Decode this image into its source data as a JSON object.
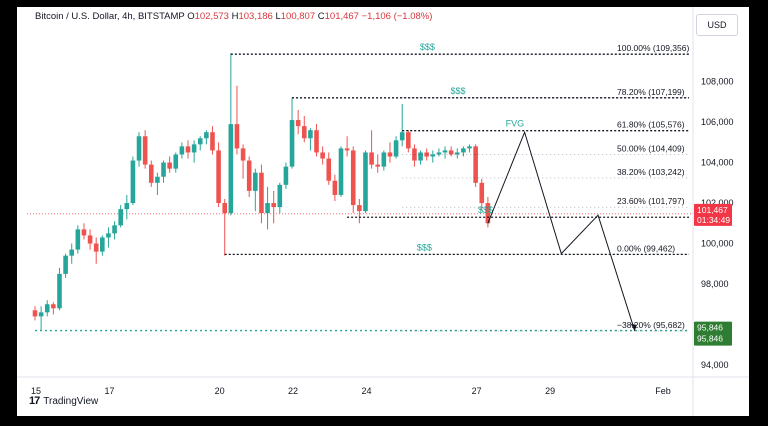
{
  "header": {
    "symbol": "Bitcoin / U.S. Dollar, 4h, BITSTAMP",
    "open_label": "O",
    "open": "102,573",
    "high_label": "H",
    "high": "103,186",
    "low_label": "L",
    "low": "100,807",
    "close_label": "C",
    "close": "101,467",
    "change": "−1,106 (−1.08%)"
  },
  "currency_button": "USD",
  "branding": "TradingView",
  "icons": [
    "tradingview-logo-icon"
  ],
  "colors": {
    "up": "#26a69a",
    "down": "#ef5350",
    "fib": "#131722",
    "annot_green": "#26a69a",
    "price_tag": "#f23645",
    "target_tag": "#2e7d32"
  },
  "chart_data": {
    "type": "candlestick",
    "timeframe": "4h",
    "y_range": [
      93800,
      110600
    ],
    "y_ticks": [
      {
        "v": 108000,
        "label": "108,000"
      },
      {
        "v": 106000,
        "label": "106,000"
      },
      {
        "v": 104000,
        "label": "104,000"
      },
      {
        "v": 102000,
        "label": "102,000"
      },
      {
        "v": 100000,
        "label": "100,000"
      },
      {
        "v": 98000,
        "label": "98,000"
      },
      {
        "v": 94000,
        "label": "94,000"
      }
    ],
    "x_ticks": [
      {
        "t": 0,
        "label": "15"
      },
      {
        "t": 12,
        "label": "17"
      },
      {
        "t": 30,
        "label": "20"
      },
      {
        "t": 42,
        "label": "22"
      },
      {
        "t": 54,
        "label": "24"
      },
      {
        "t": 72,
        "label": "27"
      },
      {
        "t": 84,
        "label": "29"
      },
      {
        "t": 102,
        "label": "Feb"
      }
    ],
    "candles": [
      [
        96700,
        96900,
        96200,
        96400
      ],
      [
        96400,
        96900,
        95700,
        96600
      ],
      [
        96600,
        97200,
        96400,
        97000
      ],
      [
        97000,
        97100,
        96500,
        96800
      ],
      [
        96800,
        98800,
        96700,
        98500
      ],
      [
        98500,
        99500,
        98300,
        99400
      ],
      [
        99400,
        100000,
        99000,
        99700
      ],
      [
        99700,
        100900,
        99500,
        100700
      ],
      [
        100700,
        101000,
        100200,
        100400
      ],
      [
        100400,
        100700,
        99700,
        100000
      ],
      [
        100000,
        100300,
        99000,
        99600
      ],
      [
        99600,
        100400,
        99400,
        100300
      ],
      [
        100300,
        100800,
        99800,
        100500
      ],
      [
        100500,
        101100,
        100200,
        100900
      ],
      [
        100900,
        101900,
        100800,
        101700
      ],
      [
        101700,
        102400,
        101200,
        102000
      ],
      [
        102000,
        104300,
        101900,
        104100
      ],
      [
        104100,
        105500,
        103800,
        105300
      ],
      [
        105300,
        105600,
        103700,
        103900
      ],
      [
        103900,
        104100,
        102800,
        103000
      ],
      [
        103000,
        103500,
        102400,
        103300
      ],
      [
        103300,
        104100,
        103000,
        104000
      ],
      [
        104000,
        104300,
        103500,
        103700
      ],
      [
        103700,
        104500,
        103500,
        104400
      ],
      [
        104400,
        105000,
        104200,
        104800
      ],
      [
        104800,
        105100,
        104200,
        104500
      ],
      [
        104500,
        105100,
        104000,
        104900
      ],
      [
        104900,
        105300,
        104600,
        105200
      ],
      [
        105200,
        105600,
        104900,
        105500
      ],
      [
        105500,
        105800,
        104400,
        104600
      ],
      [
        104600,
        105000,
        101800,
        102000
      ],
      [
        102000,
        102200,
        99400,
        101500
      ],
      [
        101500,
        109400,
        101400,
        105900
      ],
      [
        105900,
        107800,
        104400,
        104700
      ],
      [
        104700,
        104900,
        103200,
        104100
      ],
      [
        104100,
        104300,
        102300,
        102600
      ],
      [
        102600,
        103700,
        101600,
        103500
      ],
      [
        103500,
        103900,
        101000,
        101500
      ],
      [
        101500,
        102800,
        100700,
        102000
      ],
      [
        102000,
        102600,
        101000,
        101800
      ],
      [
        101800,
        103000,
        101500,
        102900
      ],
      [
        102900,
        104000,
        102700,
        103800
      ],
      [
        103800,
        107200,
        103700,
        106100
      ],
      [
        106100,
        106600,
        105400,
        105800
      ],
      [
        105800,
        106300,
        105000,
        105200
      ],
      [
        105200,
        105700,
        104600,
        105600
      ],
      [
        105600,
        105900,
        104300,
        104500
      ],
      [
        104500,
        104800,
        103900,
        104200
      ],
      [
        104200,
        104500,
        102900,
        103100
      ],
      [
        103100,
        103400,
        102100,
        102400
      ],
      [
        102400,
        104800,
        102300,
        104700
      ],
      [
        104700,
        105300,
        104300,
        104600
      ],
      [
        104600,
        104800,
        101500,
        101900
      ],
      [
        101900,
        102200,
        101000,
        101600
      ],
      [
        101600,
        104600,
        101500,
        104500
      ],
      [
        104500,
        105600,
        103700,
        103900
      ],
      [
        103900,
        104400,
        103500,
        103800
      ],
      [
        103800,
        104600,
        103600,
        104500
      ],
      [
        104500,
        105000,
        104000,
        104300
      ],
      [
        104300,
        105300,
        104200,
        105100
      ],
      [
        105100,
        106900,
        104800,
        105500
      ],
      [
        105500,
        105600,
        104500,
        104700
      ],
      [
        104700,
        104900,
        103800,
        104100
      ],
      [
        104100,
        104600,
        103900,
        104500
      ],
      [
        104500,
        104700,
        104100,
        104300
      ],
      [
        104300,
        104600,
        104000,
        104400
      ],
      [
        104400,
        104700,
        104300,
        104500
      ],
      [
        104500,
        104800,
        104200,
        104600
      ],
      [
        104600,
        104800,
        104300,
        104400
      ],
      [
        104400,
        104700,
        104200,
        104500
      ],
      [
        104500,
        104800,
        104300,
        104700
      ],
      [
        104700,
        104900,
        104500,
        104800
      ],
      [
        104800,
        104900,
        102800,
        103000
      ],
      [
        103000,
        103200,
        101600,
        102000
      ],
      [
        102000,
        102300,
        100800,
        101000
      ]
    ],
    "fib_levels": [
      {
        "ratio": "100.00%",
        "price": 109356,
        "label": "100.00% (109,356)"
      },
      {
        "ratio": "78.20%",
        "price": 107199,
        "label": "78.20% (107,199)"
      },
      {
        "ratio": "61.80%",
        "price": 105576,
        "label": "61.80% (105,576)"
      },
      {
        "ratio": "50.00%",
        "price": 104409,
        "label": "50.00% (104,409)"
      },
      {
        "ratio": "38.20%",
        "price": 103242,
        "label": "38.20% (103,242)"
      },
      {
        "ratio": "23.60%",
        "price": 101797,
        "label": "23.60% (101,797)"
      },
      {
        "ratio": "0.00%",
        "price": 99462,
        "label": "0.00% (99,462)"
      },
      {
        "ratio": "-38.20%",
        "price": 95682,
        "label": "−38.20% (95,682)"
      }
    ],
    "liquidity_lines": [
      {
        "price": 109356,
        "t0": 32,
        "label": "$$$"
      },
      {
        "price": 107199,
        "t0": 42,
        "label": "$$$"
      },
      {
        "price": 105576,
        "t0": 60,
        "label": "FVG"
      },
      {
        "price": 101300,
        "t0": 51,
        "label": "$$$"
      },
      {
        "price": 99462,
        "t0": 31,
        "label": "$$$"
      },
      {
        "price": 95700,
        "t0": 0,
        "label": ""
      }
    ],
    "projection_path": [
      {
        "t": 74,
        "price": 101000
      },
      {
        "t": 80,
        "price": 105500
      },
      {
        "t": 86,
        "price": 99500
      },
      {
        "t": 92,
        "price": 101400
      },
      {
        "t": 98,
        "price": 95682
      }
    ],
    "current_price": {
      "price": 101467,
      "label": "101,467",
      "countdown": "01:34:49"
    },
    "target_price": {
      "price": 95846,
      "label": "95,846",
      "label2": "95,846"
    }
  }
}
